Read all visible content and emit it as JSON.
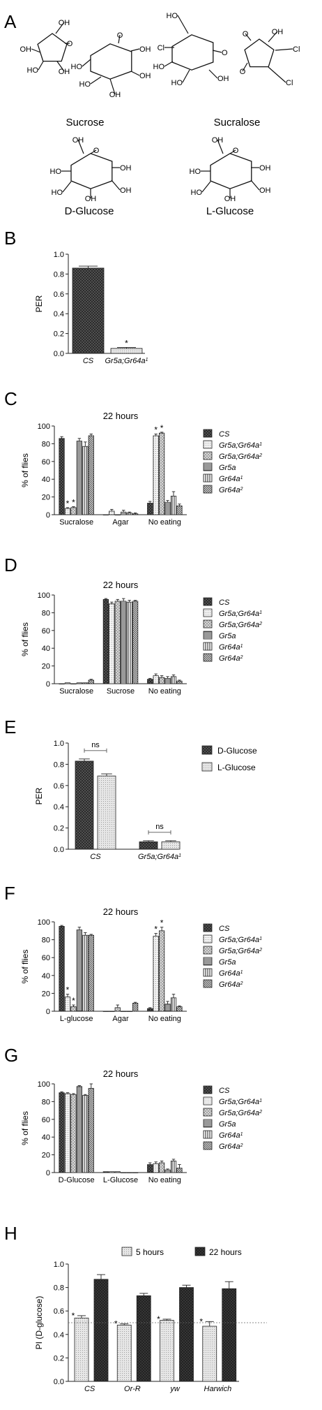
{
  "panel_letters": [
    "A",
    "B",
    "C",
    "D",
    "E",
    "F",
    "G",
    "H"
  ],
  "molecules": [
    {
      "name": "Sucrose",
      "substituents": [
        "OH",
        "O",
        "OH",
        "OH",
        "HO",
        "HO",
        "OH",
        "OH",
        "HO",
        "OH",
        "O"
      ]
    },
    {
      "name": "Sucralose",
      "substituents": [
        "HO",
        "Cl",
        "HO",
        "O",
        "OH",
        "O",
        "OH",
        "Cl",
        "HO",
        "Cl",
        "O"
      ]
    },
    {
      "name": "D-Glucose",
      "substituents": [
        "OH",
        "O",
        "HO",
        "OH",
        "HO",
        "OH",
        "OH"
      ]
    },
    {
      "name": "L-Glucose",
      "substituents": [
        "OH",
        "O",
        "HO",
        "OH",
        "HO",
        "OH",
        "OH"
      ]
    }
  ],
  "colors": {
    "dark": "#3a3a3a",
    "light": "#dcdcdc",
    "mid": "#8c8c8c",
    "axis": "#222222"
  },
  "chart_data": [
    {
      "panel": "B",
      "type": "bar",
      "ylabel": "PER",
      "ylim": [
        0,
        1.0
      ],
      "yticks": [
        "0.0",
        "0.2",
        "0.4",
        "0.6",
        "0.8",
        "1.0"
      ],
      "categories": [
        "CS",
        "Gr5a;Gr64a1"
      ],
      "values": [
        0.86,
        0.05
      ],
      "errors": [
        0.02,
        0.01
      ],
      "significance": [
        "",
        "*"
      ]
    },
    {
      "panel": "C",
      "type": "bar",
      "title": "22 hours",
      "ylabel": "% of flies",
      "ylim": [
        0,
        100
      ],
      "yticks": [
        "0",
        "20",
        "40",
        "60",
        "80",
        "100"
      ],
      "categories": [
        "Sucralose",
        "Agar",
        "No eating"
      ],
      "series": [
        {
          "name": "CS",
          "values": [
            86,
            0,
            13
          ],
          "errors": [
            2,
            0,
            2
          ],
          "sig": [
            "",
            "",
            ""
          ]
        },
        {
          "name": "Gr5a;Gr64a1",
          "values": [
            7,
            4,
            89
          ],
          "errors": [
            1,
            2,
            2
          ],
          "sig": [
            "*",
            "",
            "*"
          ]
        },
        {
          "name": "Gr5a;Gr64a2",
          "values": [
            8,
            0,
            92
          ],
          "errors": [
            1,
            0,
            1
          ],
          "sig": [
            "*",
            "",
            "*"
          ]
        },
        {
          "name": "Gr5a",
          "values": [
            83,
            3,
            14
          ],
          "errors": [
            3,
            2,
            2
          ],
          "sig": [
            "",
            "",
            ""
          ]
        },
        {
          "name": "Gr64a1",
          "values": [
            77,
            2,
            21
          ],
          "errors": [
            5,
            1,
            5
          ],
          "sig": [
            "",
            "",
            ""
          ]
        },
        {
          "name": "Gr64a2",
          "values": [
            89,
            1,
            10
          ],
          "errors": [
            2,
            1,
            2
          ],
          "sig": [
            "",
            "",
            ""
          ]
        }
      ]
    },
    {
      "panel": "D",
      "type": "bar",
      "title": "22 hours",
      "ylabel": "% of flies",
      "ylim": [
        0,
        100
      ],
      "yticks": [
        "0",
        "20",
        "40",
        "60",
        "80",
        "100"
      ],
      "categories": [
        "Sucralose",
        "Sucrose",
        "No eating"
      ],
      "series": [
        {
          "name": "CS",
          "values": [
            0,
            95,
            5
          ],
          "errors": [
            0,
            1,
            1
          ]
        },
        {
          "name": "Gr5a;Gr64a1",
          "values": [
            1,
            90,
            9
          ],
          "errors": [
            0,
            2,
            2
          ]
        },
        {
          "name": "Gr5a;Gr64a2",
          "values": [
            0,
            93,
            7
          ],
          "errors": [
            0,
            2,
            2
          ]
        },
        {
          "name": "Gr5a",
          "values": [
            1,
            93,
            6
          ],
          "errors": [
            0,
            3,
            2
          ]
        },
        {
          "name": "Gr64a1",
          "values": [
            1,
            92,
            8
          ],
          "errors": [
            0,
            2,
            2
          ]
        },
        {
          "name": "Gr64a2",
          "values": [
            4,
            93,
            3
          ],
          "errors": [
            1,
            1,
            1
          ]
        }
      ]
    },
    {
      "panel": "E",
      "type": "bar",
      "ylabel": "PER",
      "ylim": [
        0,
        1.0
      ],
      "yticks": [
        "0.0",
        "0.2",
        "0.4",
        "0.6",
        "0.8",
        "1.0"
      ],
      "categories": [
        "CS",
        "Gr5a;Gr64a1"
      ],
      "series": [
        {
          "name": "D-Glucose",
          "values": [
            0.83,
            0.07
          ],
          "errors": [
            0.02,
            0.01
          ]
        },
        {
          "name": "L-Glucose",
          "values": [
            0.69,
            0.07
          ],
          "errors": [
            0.02,
            0.01
          ]
        }
      ],
      "annotations": [
        "ns",
        "ns"
      ]
    },
    {
      "panel": "F",
      "type": "bar",
      "title": "22 hours",
      "ylabel": "% of flies",
      "ylim": [
        0,
        100
      ],
      "yticks": [
        "0",
        "20",
        "40",
        "60",
        "80",
        "100"
      ],
      "categories": [
        "L-glucose",
        "Agar",
        "No eating"
      ],
      "series": [
        {
          "name": "CS",
          "values": [
            95,
            0,
            3
          ],
          "errors": [
            1,
            0,
            1
          ],
          "sig": [
            "",
            "",
            ""
          ]
        },
        {
          "name": "Gr5a;Gr64a1",
          "values": [
            16,
            0,
            84
          ],
          "errors": [
            3,
            0,
            3
          ],
          "sig": [
            "*",
            "",
            "*"
          ]
        },
        {
          "name": "Gr5a;Gr64a2",
          "values": [
            5,
            4,
            90
          ],
          "errors": [
            2,
            3,
            4
          ],
          "sig": [
            "*",
            "",
            "*"
          ]
        },
        {
          "name": "Gr5a",
          "values": [
            91,
            0,
            8
          ],
          "errors": [
            3,
            0,
            3
          ],
          "sig": [
            "",
            "",
            ""
          ]
        },
        {
          "name": "Gr64a1",
          "values": [
            85,
            0,
            15
          ],
          "errors": [
            3,
            0,
            4
          ],
          "sig": [
            "",
            "",
            ""
          ]
        },
        {
          "name": "Gr64a2",
          "values": [
            85,
            9,
            5
          ],
          "errors": [
            1,
            1,
            1
          ],
          "sig": [
            "",
            "",
            ""
          ]
        }
      ]
    },
    {
      "panel": "G",
      "type": "bar",
      "title": "22 hours",
      "ylabel": "% of flies",
      "ylim": [
        0,
        100
      ],
      "yticks": [
        "0",
        "20",
        "40",
        "60",
        "80",
        "100"
      ],
      "categories": [
        "D-Glucose",
        "L-Glucose",
        "No eating"
      ],
      "series": [
        {
          "name": "CS",
          "values": [
            90,
            1,
            9
          ],
          "errors": [
            1,
            0,
            2
          ]
        },
        {
          "name": "Gr5a;Gr64a1",
          "values": [
            89,
            1,
            10
          ],
          "errors": [
            1,
            0,
            2
          ]
        },
        {
          "name": "Gr5a;Gr64a2",
          "values": [
            88,
            1,
            11
          ],
          "errors": [
            1,
            0,
            2
          ]
        },
        {
          "name": "Gr5a",
          "values": [
            97,
            0,
            3
          ],
          "errors": [
            1,
            0,
            1
          ]
        },
        {
          "name": "Gr64a1",
          "values": [
            87,
            0,
            13
          ],
          "errors": [
            1,
            0,
            2
          ]
        },
        {
          "name": "Gr64a2",
          "values": [
            95,
            0,
            5
          ],
          "errors": [
            5,
            0,
            4
          ]
        }
      ]
    },
    {
      "panel": "H",
      "type": "bar",
      "ylabel": "PI (D-glucose)",
      "ylim": [
        0,
        1.0
      ],
      "yticks": [
        "0.0",
        "0.2",
        "0.4",
        "0.6",
        "0.8",
        "1.0"
      ],
      "categories": [
        "CS",
        "Or-R",
        "yw",
        "Harwich"
      ],
      "series": [
        {
          "name": "5 hours",
          "values": [
            0.54,
            0.48,
            0.52,
            0.47
          ],
          "errors": [
            0.02,
            0.01,
            0.01,
            0.04
          ],
          "sig": [
            "*",
            "*",
            "*",
            "*"
          ]
        },
        {
          "name": "22 hours",
          "values": [
            0.87,
            0.73,
            0.8,
            0.79
          ],
          "errors": [
            0.04,
            0.02,
            0.02,
            0.06
          ],
          "sig": [
            "",
            "",
            "",
            ""
          ]
        }
      ],
      "reference_line": 0.5
    }
  ]
}
